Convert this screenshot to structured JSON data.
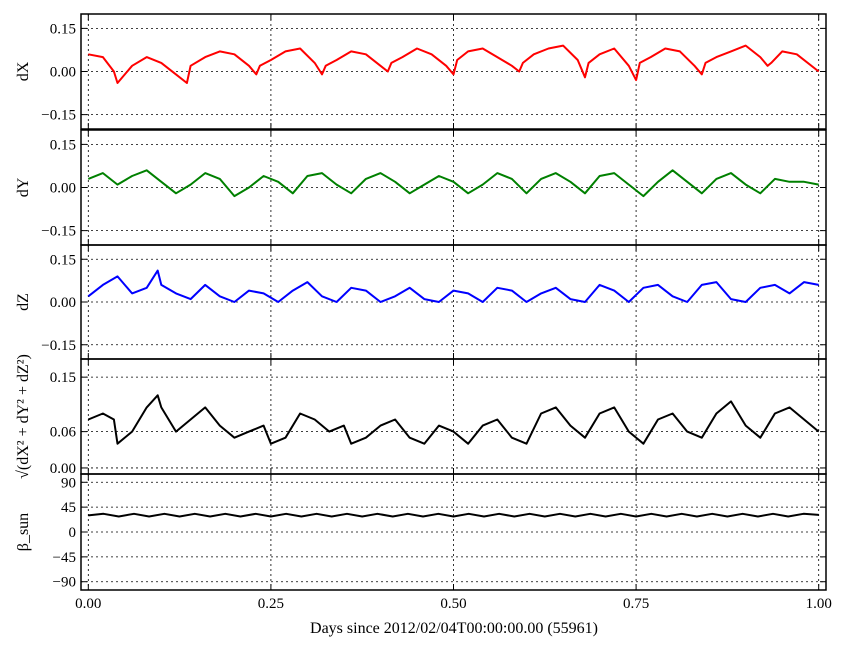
{
  "chart_data": [
    {
      "type": "line",
      "ylabel": "dX",
      "ylim": [
        -0.2,
        0.2
      ],
      "yticks": [
        -0.15,
        0.0,
        0.15
      ],
      "ytick_labels": [
        "−0.15",
        "0.00",
        "0.15"
      ],
      "grid": true,
      "series": [
        {
          "color": "#ff0000",
          "x": [
            0.0,
            0.02,
            0.035,
            0.04,
            0.06,
            0.08,
            0.1,
            0.12,
            0.135,
            0.14,
            0.16,
            0.18,
            0.2,
            0.22,
            0.23,
            0.235,
            0.25,
            0.27,
            0.29,
            0.31,
            0.32,
            0.325,
            0.34,
            0.36,
            0.38,
            0.4,
            0.41,
            0.415,
            0.43,
            0.45,
            0.47,
            0.49,
            0.5,
            0.505,
            0.52,
            0.54,
            0.56,
            0.58,
            0.59,
            0.595,
            0.61,
            0.63,
            0.65,
            0.67,
            0.68,
            0.685,
            0.7,
            0.72,
            0.74,
            0.75,
            0.755,
            0.77,
            0.79,
            0.81,
            0.83,
            0.84,
            0.845,
            0.86,
            0.88,
            0.9,
            0.92,
            0.93,
            0.935,
            0.95,
            0.97,
            1.0
          ],
          "values": [
            0.06,
            0.05,
            0.0,
            -0.04,
            0.02,
            0.05,
            0.03,
            -0.01,
            -0.04,
            0.02,
            0.05,
            0.07,
            0.06,
            0.02,
            -0.01,
            0.02,
            0.04,
            0.07,
            0.08,
            0.03,
            -0.01,
            0.02,
            0.04,
            0.07,
            0.06,
            0.02,
            0.0,
            0.03,
            0.05,
            0.08,
            0.06,
            0.02,
            -0.01,
            0.04,
            0.07,
            0.08,
            0.05,
            0.02,
            0.0,
            0.03,
            0.06,
            0.08,
            0.09,
            0.04,
            -0.02,
            0.03,
            0.06,
            0.08,
            0.02,
            -0.03,
            0.03,
            0.05,
            0.08,
            0.07,
            0.02,
            -0.01,
            0.03,
            0.05,
            0.07,
            0.09,
            0.05,
            0.02,
            0.03,
            0.07,
            0.06,
            0.0
          ]
        }
      ]
    },
    {
      "type": "line",
      "ylabel": "dY",
      "ylim": [
        -0.2,
        0.2
      ],
      "yticks": [
        -0.15,
        0.0,
        0.15
      ],
      "ytick_labels": [
        "−0.15",
        "0.00",
        "0.15"
      ],
      "grid": true,
      "series": [
        {
          "color": "#008000",
          "x": [
            0.0,
            0.02,
            0.04,
            0.06,
            0.08,
            0.1,
            0.12,
            0.14,
            0.16,
            0.18,
            0.2,
            0.22,
            0.24,
            0.26,
            0.28,
            0.3,
            0.32,
            0.34,
            0.36,
            0.38,
            0.4,
            0.42,
            0.44,
            0.46,
            0.48,
            0.5,
            0.52,
            0.54,
            0.56,
            0.58,
            0.6,
            0.62,
            0.64,
            0.66,
            0.68,
            0.7,
            0.72,
            0.74,
            0.76,
            0.78,
            0.8,
            0.82,
            0.84,
            0.86,
            0.88,
            0.9,
            0.92,
            0.94,
            0.96,
            0.98,
            1.0
          ],
          "values": [
            0.03,
            0.05,
            0.01,
            0.04,
            0.06,
            0.02,
            -0.02,
            0.01,
            0.05,
            0.03,
            -0.03,
            0.0,
            0.04,
            0.02,
            -0.02,
            0.04,
            0.05,
            0.01,
            -0.02,
            0.03,
            0.05,
            0.02,
            -0.02,
            0.01,
            0.04,
            0.02,
            -0.02,
            0.01,
            0.05,
            0.03,
            -0.02,
            0.03,
            0.05,
            0.02,
            -0.02,
            0.04,
            0.05,
            0.01,
            -0.03,
            0.02,
            0.06,
            0.02,
            -0.02,
            0.03,
            0.05,
            0.01,
            -0.02,
            0.03,
            0.02,
            0.02,
            0.01
          ]
        }
      ]
    },
    {
      "type": "line",
      "ylabel": "dZ",
      "ylim": [
        -0.2,
        0.2
      ],
      "yticks": [
        -0.15,
        0.0,
        0.15
      ],
      "ytick_labels": [
        "−0.15",
        "0.00",
        "0.15"
      ],
      "grid": true,
      "series": [
        {
          "color": "#0000ff",
          "x": [
            0.0,
            0.02,
            0.04,
            0.06,
            0.08,
            0.095,
            0.1,
            0.12,
            0.14,
            0.16,
            0.18,
            0.2,
            0.22,
            0.24,
            0.26,
            0.28,
            0.3,
            0.32,
            0.34,
            0.36,
            0.38,
            0.4,
            0.42,
            0.44,
            0.46,
            0.48,
            0.5,
            0.52,
            0.54,
            0.56,
            0.58,
            0.6,
            0.62,
            0.64,
            0.66,
            0.68,
            0.7,
            0.72,
            0.74,
            0.76,
            0.78,
            0.8,
            0.82,
            0.84,
            0.86,
            0.88,
            0.9,
            0.92,
            0.94,
            0.96,
            0.98,
            1.0
          ],
          "values": [
            0.02,
            0.06,
            0.09,
            0.03,
            0.05,
            0.11,
            0.06,
            0.03,
            0.01,
            0.06,
            0.02,
            0.0,
            0.04,
            0.03,
            0.0,
            0.04,
            0.07,
            0.02,
            0.0,
            0.05,
            0.04,
            0.0,
            0.02,
            0.05,
            0.01,
            0.0,
            0.04,
            0.03,
            0.0,
            0.05,
            0.04,
            0.0,
            0.03,
            0.05,
            0.01,
            0.0,
            0.06,
            0.04,
            0.0,
            0.05,
            0.06,
            0.02,
            0.0,
            0.06,
            0.07,
            0.01,
            0.0,
            0.05,
            0.06,
            0.03,
            0.07,
            0.06
          ]
        }
      ]
    },
    {
      "type": "line",
      "ylabel": "√(dX² + dY² + dZ²)",
      "ylim": [
        -0.01,
        0.18
      ],
      "yticks": [
        0.0,
        0.06,
        0.15
      ],
      "ytick_labels": [
        "0.00",
        "0.06",
        "0.15"
      ],
      "grid": true,
      "series": [
        {
          "color": "#000000",
          "x": [
            0.0,
            0.02,
            0.035,
            0.04,
            0.06,
            0.08,
            0.095,
            0.1,
            0.12,
            0.14,
            0.16,
            0.18,
            0.2,
            0.22,
            0.24,
            0.25,
            0.27,
            0.29,
            0.31,
            0.33,
            0.35,
            0.36,
            0.38,
            0.4,
            0.42,
            0.44,
            0.46,
            0.48,
            0.5,
            0.52,
            0.54,
            0.56,
            0.58,
            0.6,
            0.62,
            0.64,
            0.66,
            0.68,
            0.7,
            0.72,
            0.74,
            0.76,
            0.78,
            0.8,
            0.82,
            0.84,
            0.86,
            0.88,
            0.9,
            0.92,
            0.94,
            0.96,
            0.98,
            1.0
          ],
          "values": [
            0.08,
            0.09,
            0.08,
            0.04,
            0.06,
            0.1,
            0.12,
            0.1,
            0.06,
            0.08,
            0.1,
            0.07,
            0.05,
            0.06,
            0.07,
            0.04,
            0.05,
            0.09,
            0.08,
            0.06,
            0.07,
            0.04,
            0.05,
            0.07,
            0.08,
            0.05,
            0.04,
            0.07,
            0.06,
            0.04,
            0.07,
            0.08,
            0.05,
            0.04,
            0.09,
            0.1,
            0.07,
            0.05,
            0.09,
            0.1,
            0.06,
            0.04,
            0.08,
            0.09,
            0.06,
            0.05,
            0.09,
            0.11,
            0.07,
            0.05,
            0.09,
            0.1,
            0.08,
            0.06
          ]
        }
      ]
    },
    {
      "type": "line",
      "ylabel": "β_sun",
      "ylim": [
        -105,
        105
      ],
      "yticks": [
        -90,
        -45,
        0,
        45,
        90
      ],
      "ytick_labels": [
        "−90",
        "−45",
        "0",
        "45",
        "90"
      ],
      "grid": true,
      "series": [
        {
          "color": "#000000",
          "x": [
            0.0,
            0.0208,
            0.0417,
            0.0625,
            0.0833,
            0.1042,
            0.125,
            0.1458,
            0.1667,
            0.1875,
            0.2083,
            0.2292,
            0.25,
            0.2708,
            0.2917,
            0.3125,
            0.3333,
            0.3542,
            0.375,
            0.3958,
            0.4167,
            0.4375,
            0.4583,
            0.4792,
            0.5,
            0.5208,
            0.5417,
            0.5625,
            0.5833,
            0.6042,
            0.625,
            0.6458,
            0.6667,
            0.6875,
            0.7083,
            0.7292,
            0.75,
            0.7708,
            0.7917,
            0.8125,
            0.8333,
            0.8542,
            0.875,
            0.8958,
            0.9167,
            0.9375,
            0.9583,
            0.9792,
            1.0
          ],
          "values": [
            30,
            33,
            28,
            33,
            28,
            33,
            28,
            33,
            28,
            33,
            28,
            33,
            28,
            33,
            28,
            33,
            28,
            33,
            28,
            33,
            28,
            33,
            28,
            33,
            28,
            33,
            28,
            33,
            28,
            33,
            28,
            33,
            28,
            33,
            28,
            33,
            28,
            33,
            28,
            33,
            28,
            33,
            28,
            33,
            28,
            33,
            28,
            33,
            31
          ]
        }
      ]
    }
  ],
  "shared_x": {
    "xlim": [
      -0.01,
      1.01
    ],
    "xticks": [
      0.0,
      0.25,
      0.5,
      0.75,
      1.0
    ],
    "xtick_labels": [
      "0.00",
      "0.25",
      "0.50",
      "0.75",
      "1.00"
    ],
    "xlabel": "Days since 2012/02/04T00:00:00.00 (55961)"
  }
}
